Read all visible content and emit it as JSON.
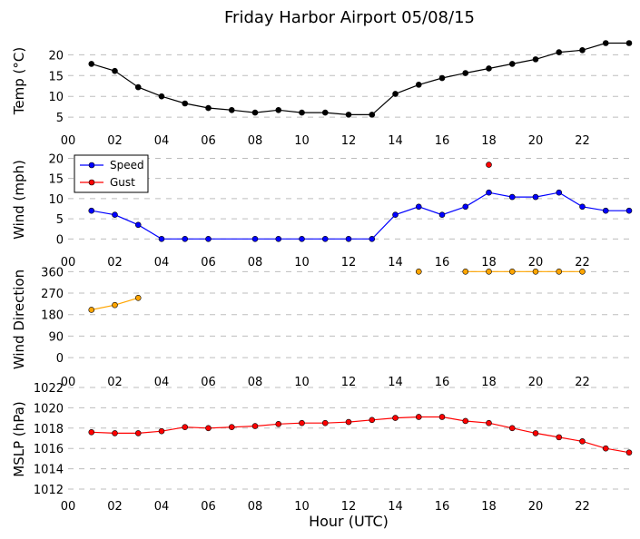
{
  "title": "Friday Harbor Airport 05/08/15",
  "chart_data": [
    {
      "type": "line",
      "ylabel": "Temp ($^\\circ$C)",
      "ylabel_display": "Temp (°C)",
      "xlim": [
        0,
        24
      ],
      "ylim": [
        3.5,
        24
      ],
      "yticks": [
        5,
        10,
        15,
        20
      ],
      "grid": true,
      "series": [
        {
          "color": "#000000",
          "x": [
            1,
            2,
            3,
            4,
            5,
            6,
            7,
            8,
            9,
            10,
            11,
            12,
            13,
            14,
            15,
            16,
            17,
            18,
            19,
            20,
            21,
            22,
            23,
            24
          ],
          "y": [
            17.8,
            16.1,
            12.2,
            10.0,
            8.3,
            7.2,
            6.7,
            6.1,
            6.7,
            6.1,
            6.1,
            5.6,
            5.6,
            10.6,
            12.8,
            14.4,
            15.6,
            16.7,
            17.8,
            18.9,
            20.6,
            21.1,
            22.8,
            22.8
          ]
        }
      ]
    },
    {
      "type": "line",
      "ylabel": "Wind (mph)",
      "xlim": [
        0,
        24
      ],
      "ylim": [
        -1.5,
        21
      ],
      "yticks": [
        0,
        5,
        10,
        15,
        20
      ],
      "grid": true,
      "legend": "top-left",
      "series": [
        {
          "name": "Speed",
          "color": "#0000ff",
          "x": [
            1,
            2,
            3,
            4,
            5,
            6,
            8,
            9,
            10,
            11,
            12,
            13,
            14,
            15,
            16,
            17,
            18,
            19,
            20,
            21,
            22,
            23,
            24
          ],
          "y": [
            7,
            6,
            3.5,
            0,
            0,
            0,
            0,
            0,
            0,
            0,
            0,
            0,
            6,
            8,
            6,
            8,
            11.5,
            10.4,
            10.4,
            11.5,
            8,
            7,
            7
          ]
        },
        {
          "name": "Gust",
          "color": "#ff0000",
          "x": [
            18
          ],
          "y": [
            18.4
          ]
        }
      ]
    },
    {
      "type": "line",
      "ylabel": "Wind Direction",
      "xlim": [
        0,
        24
      ],
      "ylim": [
        -30,
        365
      ],
      "yticks": [
        0,
        90,
        180,
        270,
        360
      ],
      "grid": true,
      "series": [
        {
          "color": "#ffa500",
          "segments": [
            {
              "x": [
                1,
                2,
                3
              ],
              "y": [
                200,
                220,
                250
              ]
            },
            {
              "x": [
                15
              ],
              "y": [
                360
              ]
            },
            {
              "x": [
                17,
                18,
                19,
                20,
                21,
                22
              ],
              "y": [
                360,
                360,
                360,
                360,
                360,
                360
              ]
            }
          ]
        }
      ]
    },
    {
      "type": "line",
      "ylabel": "MSLP (hPa)",
      "xlabel": "Hour (UTC)",
      "xlim": [
        0,
        24
      ],
      "ylim": [
        1012,
        1022
      ],
      "yticks": [
        1012,
        1014,
        1016,
        1018,
        1020,
        1022
      ],
      "grid": true,
      "series": [
        {
          "color": "#ff0000",
          "x": [
            1,
            2,
            3,
            4,
            5,
            6,
            7,
            8,
            9,
            10,
            11,
            12,
            13,
            14,
            15,
            16,
            17,
            18,
            19,
            20,
            21,
            22,
            23,
            24
          ],
          "y": [
            1017.6,
            1017.5,
            1017.5,
            1017.7,
            1018.1,
            1018.0,
            1018.1,
            1018.2,
            1018.4,
            1018.5,
            1018.5,
            1018.6,
            1018.8,
            1019.0,
            1019.1,
            1019.1,
            1018.7,
            1018.5,
            1018.0,
            1017.5,
            1017.1,
            1016.7,
            1016.0,
            1015.6
          ]
        }
      ]
    }
  ],
  "xticks": [
    "00",
    "02",
    "04",
    "06",
    "08",
    "10",
    "12",
    "14",
    "16",
    "18",
    "20",
    "22"
  ]
}
